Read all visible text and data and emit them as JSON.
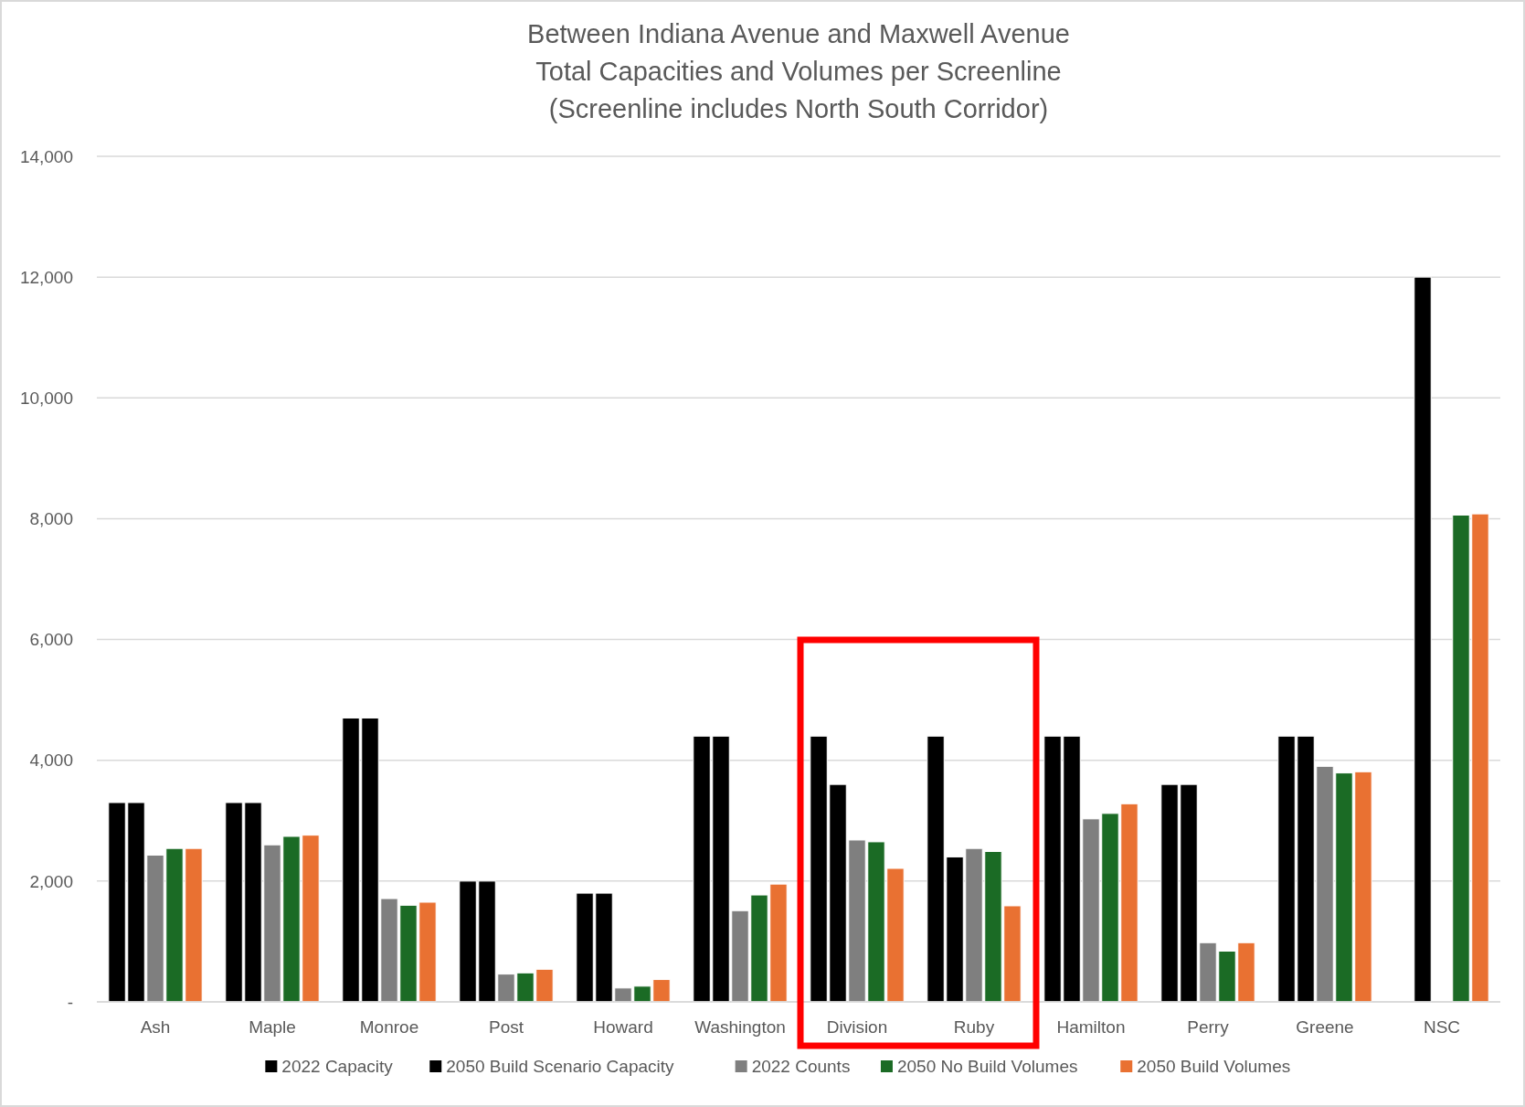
{
  "chart_data": {
    "type": "bar",
    "title": "Between Indiana Avenue and Maxwell Avenue\nTotal Capacities and Volumes per Screenline\n(Screenline includes North South Corridor)",
    "categories": [
      "Ash",
      "Maple",
      "Monroe",
      "Post",
      "Howard",
      "Washington",
      "Division",
      "Ruby",
      "Hamilton",
      "Perry",
      "Greene",
      "NSC"
    ],
    "series": [
      {
        "name": "2022 Capacity",
        "color": "#000000",
        "values": [
          3300,
          3300,
          4700,
          2000,
          1800,
          4400,
          4400,
          4400,
          4400,
          3600,
          4400,
          null
        ]
      },
      {
        "name": "2050 Build Scenario Capacity",
        "color": "#000000",
        "values": [
          3300,
          3300,
          4700,
          2000,
          1800,
          4400,
          3600,
          2400,
          4400,
          3600,
          4400,
          12000
        ]
      },
      {
        "name": "2022 Counts",
        "color": "#7f7f7f",
        "values": [
          2430,
          2600,
          1710,
          460,
          230,
          1510,
          2680,
          2540,
          3030,
          980,
          3900,
          null
        ]
      },
      {
        "name": "2050 No Build Volumes",
        "color": "#1b6b25",
        "values": [
          2540,
          2740,
          1600,
          480,
          260,
          1770,
          2650,
          2490,
          3120,
          840,
          3790,
          8060
        ]
      },
      {
        "name": "2050 Build Volumes",
        "color": "#e97132",
        "values": [
          2540,
          2760,
          1650,
          540,
          370,
          1950,
          2210,
          1590,
          3280,
          980,
          3810,
          8080
        ]
      }
    ],
    "ylim": [
      0,
      14000
    ],
    "yticks": [
      {
        "value": 0,
        "label": "-"
      },
      {
        "value": 2000,
        "label": "2,000"
      },
      {
        "value": 4000,
        "label": "4,000"
      },
      {
        "value": 6000,
        "label": "6,000"
      },
      {
        "value": 8000,
        "label": "8,000"
      },
      {
        "value": 10000,
        "label": "10,000"
      },
      {
        "value": 12000,
        "label": "12,000"
      },
      {
        "value": 14000,
        "label": "14,000"
      }
    ],
    "grid": "y",
    "legend": "bottom"
  }
}
